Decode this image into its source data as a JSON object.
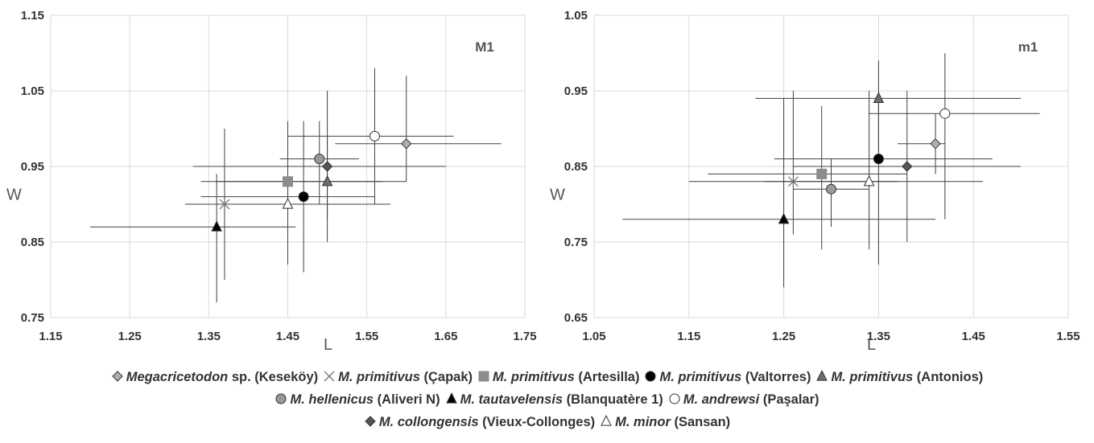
{
  "chart_data": [
    {
      "type": "scatter",
      "panel_label": "M1",
      "xlabel": "L",
      "ylabel": "W",
      "xlim": [
        1.15,
        1.75
      ],
      "ylim": [
        0.75,
        1.15
      ],
      "x_ticks": [
        "1.15",
        "1.25",
        "1.35",
        "1.45",
        "1.55",
        "1.65",
        "1.75"
      ],
      "y_ticks": [
        "0.75",
        "0.85",
        "0.95",
        "1.05",
        "1.15"
      ],
      "grid": true,
      "series": [
        {
          "name": "Megacricetodon sp. (Keseköy)",
          "marker": "diamond",
          "fill": "#b0b0b0",
          "x": 1.6,
          "y": 0.98,
          "x_range": [
            1.51,
            1.72
          ],
          "y_range": [
            0.93,
            1.07
          ]
        },
        {
          "name": "M. primitivus (Çapak)",
          "marker": "cross",
          "fill": "#8c8c8c",
          "x": 1.37,
          "y": 0.9,
          "x_range": [
            1.32,
            1.46
          ],
          "y_range": [
            0.8,
            1.0
          ]
        },
        {
          "name": "M. primitivus (Artesilla)",
          "marker": "square",
          "fill": "#8c8c8c",
          "x": 1.45,
          "y": 0.93,
          "x_range": [
            1.34,
            1.57
          ],
          "y_range": [
            0.85,
            1.01
          ]
        },
        {
          "name": "M. primitivus (Valtorres)",
          "marker": "circle",
          "fill": "#000000",
          "x": 1.47,
          "y": 0.91,
          "x_range": [
            1.34,
            1.56
          ],
          "y_range": [
            0.81,
            1.01
          ]
        },
        {
          "name": "M. primitivus (Antonios)",
          "marker": "triangle",
          "fill": "#6e6e6e",
          "x": 1.5,
          "y": 0.93,
          "x_range": [
            1.36,
            1.6
          ],
          "y_range": [
            0.88,
            0.99
          ]
        },
        {
          "name": "M. hellenicus (Aliveri N)",
          "marker": "circle",
          "fill": "#999999",
          "x": 1.49,
          "y": 0.96,
          "x_range": [
            1.44,
            1.54
          ],
          "y_range": [
            0.9,
            1.01
          ]
        },
        {
          "name": "M. tautavelensis (Blanquatère 1)",
          "marker": "triangle",
          "fill": "#000000",
          "x": 1.36,
          "y": 0.87,
          "x_range": [
            1.2,
            1.46
          ],
          "y_range": [
            0.77,
            0.94
          ]
        },
        {
          "name": "M. andrewsi (Paşalar)",
          "marker": "circle",
          "fill": "#ffffff",
          "x": 1.56,
          "y": 0.99,
          "x_range": [
            1.45,
            1.66
          ],
          "y_range": [
            0.9,
            1.08
          ]
        },
        {
          "name": "M. collongensis (Vieux-Collonges)",
          "marker": "diamond",
          "fill": "#555555",
          "x": 1.5,
          "y": 0.95,
          "x_range": [
            1.33,
            1.65
          ],
          "y_range": [
            0.85,
            1.05
          ]
        },
        {
          "name": "M. minor (Sansan)",
          "marker": "triangle",
          "fill": "#ffffff",
          "x": 1.45,
          "y": 0.9,
          "x_range": [
            1.33,
            1.58
          ],
          "y_range": [
            0.82,
            0.97
          ]
        }
      ]
    },
    {
      "type": "scatter",
      "panel_label": "m1",
      "xlabel": "L",
      "ylabel": "W",
      "xlim": [
        1.05,
        1.55
      ],
      "ylim": [
        0.65,
        1.05
      ],
      "x_ticks": [
        "1.05",
        "1.15",
        "1.25",
        "1.35",
        "1.45",
        "1.55"
      ],
      "y_ticks": [
        "0.65",
        "0.75",
        "0.85",
        "0.95",
        "1.05"
      ],
      "grid": true,
      "series": [
        {
          "name": "Megacricetodon sp. (Keseköy)",
          "marker": "diamond",
          "fill": "#b0b0b0",
          "x": 1.41,
          "y": 0.88,
          "x_range": [
            1.37,
            1.42
          ],
          "y_range": [
            0.84,
            0.92
          ]
        },
        {
          "name": "M. primitivus (Çapak)",
          "marker": "cross",
          "fill": "#8c8c8c",
          "x": 1.26,
          "y": 0.83,
          "x_range": [
            1.15,
            1.37
          ],
          "y_range": [
            0.76,
            0.95
          ]
        },
        {
          "name": "M. primitivus (Artesilla)",
          "marker": "square",
          "fill": "#8c8c8c",
          "x": 1.29,
          "y": 0.84,
          "x_range": [
            1.17,
            1.38
          ],
          "y_range": [
            0.74,
            0.93
          ]
        },
        {
          "name": "M. primitivus (Valtorres)",
          "marker": "circle",
          "fill": "#000000",
          "x": 1.35,
          "y": 0.86,
          "x_range": [
            1.24,
            1.47
          ],
          "y_range": [
            0.72,
            0.95
          ]
        },
        {
          "name": "M. primitivus (Antonios)",
          "marker": "triangle",
          "fill": "#6e6e6e",
          "x": 1.35,
          "y": 0.94,
          "x_range": [
            1.22,
            1.5
          ],
          "y_range": [
            0.87,
            0.99
          ]
        },
        {
          "name": "M. hellenicus (Aliveri N)",
          "marker": "circle",
          "fill": "#999999",
          "x": 1.3,
          "y": 0.82,
          "x_range": [
            1.26,
            1.34
          ],
          "y_range": [
            0.77,
            0.86
          ]
        },
        {
          "name": "M. tautavelensis (Blanquatère 1)",
          "marker": "triangle",
          "fill": "#000000",
          "x": 1.25,
          "y": 0.78,
          "x_range": [
            1.08,
            1.41
          ],
          "y_range": [
            0.69,
            0.94
          ]
        },
        {
          "name": "M. andrewsi (Paşalar)",
          "marker": "circle",
          "fill": "#ffffff",
          "x": 1.42,
          "y": 0.92,
          "x_range": [
            1.34,
            1.52
          ],
          "y_range": [
            0.78,
            1.0
          ]
        },
        {
          "name": "M. collongensis (Vieux-Collonges)",
          "marker": "diamond",
          "fill": "#555555",
          "x": 1.38,
          "y": 0.85,
          "x_range": [
            1.26,
            1.5
          ],
          "y_range": [
            0.75,
            0.95
          ]
        },
        {
          "name": "M. minor (Sansan)",
          "marker": "triangle",
          "fill": "#ffffff",
          "x": 1.34,
          "y": 0.83,
          "x_range": [
            1.23,
            1.46
          ],
          "y_range": [
            0.74,
            0.95
          ]
        }
      ]
    }
  ],
  "legend": {
    "lines": [
      [
        {
          "marker": "diamond",
          "fill": "#b0b0b0",
          "taxon": "Megacricetodon",
          "suffix": " sp.",
          "locality": " (Keseköy)"
        },
        {
          "marker": "cross",
          "fill": "#8c8c8c",
          "taxon": "M. primitivus",
          "suffix": "",
          "locality": " (Çapak)"
        },
        {
          "marker": "square",
          "fill": "#8c8c8c",
          "taxon": "M. primitivus",
          "suffix": "",
          "locality": " (Artesilla)"
        },
        {
          "marker": "circle",
          "fill": "#000000",
          "taxon": "M. primitivus",
          "suffix": "",
          "locality": " (Valtorres)"
        },
        {
          "marker": "triangle",
          "fill": "#6e6e6e",
          "taxon": "M. primitivus",
          "suffix": "",
          "locality": " (Antonios)"
        }
      ],
      [
        {
          "marker": "circle",
          "fill": "#999999",
          "taxon": "M. hellenicus",
          "suffix": "",
          "locality": " (Aliveri N)"
        },
        {
          "marker": "triangle",
          "fill": "#000000",
          "taxon": "M. tautavelensis",
          "suffix": "",
          "locality": " (Blanquatère 1)"
        },
        {
          "marker": "circle",
          "fill": "#ffffff",
          "taxon": "M. andrewsi",
          "suffix": "",
          "locality": " (Paşalar)"
        }
      ],
      [
        {
          "marker": "diamond",
          "fill": "#555555",
          "taxon": "M. collongensis",
          "suffix": "",
          "locality": " (Vieux-Collonges)"
        },
        {
          "marker": "triangle",
          "fill": "#ffffff",
          "taxon": "M. minor",
          "suffix": "",
          "locality": " (Sansan)"
        }
      ]
    ]
  }
}
